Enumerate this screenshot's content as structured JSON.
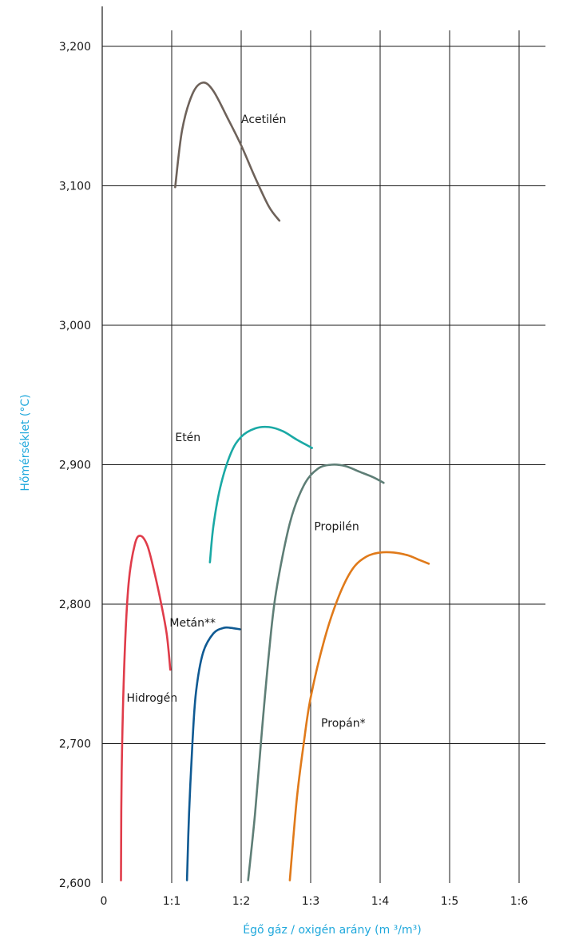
{
  "chart_data": {
    "type": "line",
    "xlabel": "Égő gáz / oxigén arány (m ³/m³)",
    "ylabel": "Hőmérséklet (°C)",
    "xlim": [
      0,
      6.4
    ],
    "ylim": [
      2600,
      3230
    ],
    "x_ticks": [
      {
        "value": 0,
        "label": "0"
      },
      {
        "value": 1,
        "label": "1:1"
      },
      {
        "value": 2,
        "label": "1:2"
      },
      {
        "value": 3,
        "label": "1:3"
      },
      {
        "value": 4,
        "label": "1:4"
      },
      {
        "value": 5,
        "label": "1:5"
      },
      {
        "value": 6,
        "label": "1:6"
      }
    ],
    "y_ticks": [
      {
        "value": 2600,
        "label": "2,600"
      },
      {
        "value": 2700,
        "label": "2,700"
      },
      {
        "value": 2800,
        "label": "2,800"
      },
      {
        "value": 2900,
        "label": "2,900"
      },
      {
        "value": 3000,
        "label": "3,000"
      },
      {
        "value": 3100,
        "label": "3,100"
      },
      {
        "value": 3200,
        "label": "3,200"
      }
    ],
    "grid": true,
    "axis_title_color": "#1fa8dc",
    "series": [
      {
        "name": "Acetilén",
        "color": "#6e625a",
        "label_at": [
          2.0,
          3145
        ],
        "label_anchor": "start",
        "points": [
          [
            1.05,
            3099
          ],
          [
            1.15,
            3140
          ],
          [
            1.3,
            3166
          ],
          [
            1.45,
            3174
          ],
          [
            1.6,
            3168
          ],
          [
            1.8,
            3149
          ],
          [
            2.0,
            3129
          ],
          [
            2.2,
            3106
          ],
          [
            2.4,
            3085
          ],
          [
            2.55,
            3075
          ]
        ]
      },
      {
        "name": "Etén",
        "color": "#1aa9a5",
        "label_at": [
          1.05,
          2917
        ],
        "label_anchor": "start",
        "points": [
          [
            1.55,
            2830
          ],
          [
            1.6,
            2856
          ],
          [
            1.7,
            2884
          ],
          [
            1.85,
            2908
          ],
          [
            2.0,
            2920
          ],
          [
            2.2,
            2926
          ],
          [
            2.4,
            2927
          ],
          [
            2.6,
            2924
          ],
          [
            2.8,
            2918
          ],
          [
            3.02,
            2912
          ]
        ]
      },
      {
        "name": "Propilén",
        "color": "#5e7e76",
        "label_at": [
          3.05,
          2853
        ],
        "label_anchor": "start",
        "points": [
          [
            2.1,
            2602
          ],
          [
            2.2,
            2650
          ],
          [
            2.3,
            2710
          ],
          [
            2.4,
            2765
          ],
          [
            2.5,
            2808
          ],
          [
            2.7,
            2858
          ],
          [
            2.9,
            2885
          ],
          [
            3.1,
            2897
          ],
          [
            3.3,
            2900
          ],
          [
            3.5,
            2899
          ],
          [
            3.7,
            2895
          ],
          [
            3.9,
            2891
          ],
          [
            4.05,
            2887
          ]
        ]
      },
      {
        "name": "Propán*",
        "color": "#e07a1a",
        "label_at": [
          3.15,
          2712
        ],
        "label_anchor": "start",
        "points": [
          [
            2.7,
            2602
          ],
          [
            2.8,
            2660
          ],
          [
            2.9,
            2700
          ],
          [
            3.0,
            2733
          ],
          [
            3.2,
            2775
          ],
          [
            3.4,
            2805
          ],
          [
            3.6,
            2825
          ],
          [
            3.8,
            2834
          ],
          [
            4.0,
            2837
          ],
          [
            4.2,
            2837
          ],
          [
            4.4,
            2835
          ],
          [
            4.55,
            2832
          ],
          [
            4.7,
            2829
          ]
        ]
      },
      {
        "name": "Metán**",
        "color": "#0f5a93",
        "label_at": [
          0.97,
          2784
        ],
        "label_anchor": "start",
        "points": [
          [
            1.22,
            2602
          ],
          [
            1.25,
            2650
          ],
          [
            1.3,
            2702
          ],
          [
            1.35,
            2737
          ],
          [
            1.45,
            2765
          ],
          [
            1.6,
            2779
          ],
          [
            1.75,
            2783
          ],
          [
            1.85,
            2783
          ],
          [
            1.98,
            2782
          ]
        ]
      },
      {
        "name": "Hidrogén",
        "color": "#e03c4a",
        "label_at": [
          0.35,
          2730
        ],
        "label_anchor": "start",
        "points": [
          [
            0.27,
            2602
          ],
          [
            0.28,
            2680
          ],
          [
            0.32,
            2760
          ],
          [
            0.38,
            2815
          ],
          [
            0.47,
            2843
          ],
          [
            0.55,
            2849
          ],
          [
            0.65,
            2842
          ],
          [
            0.75,
            2823
          ],
          [
            0.85,
            2800
          ],
          [
            0.93,
            2778
          ],
          [
            0.98,
            2753
          ]
        ]
      }
    ]
  }
}
